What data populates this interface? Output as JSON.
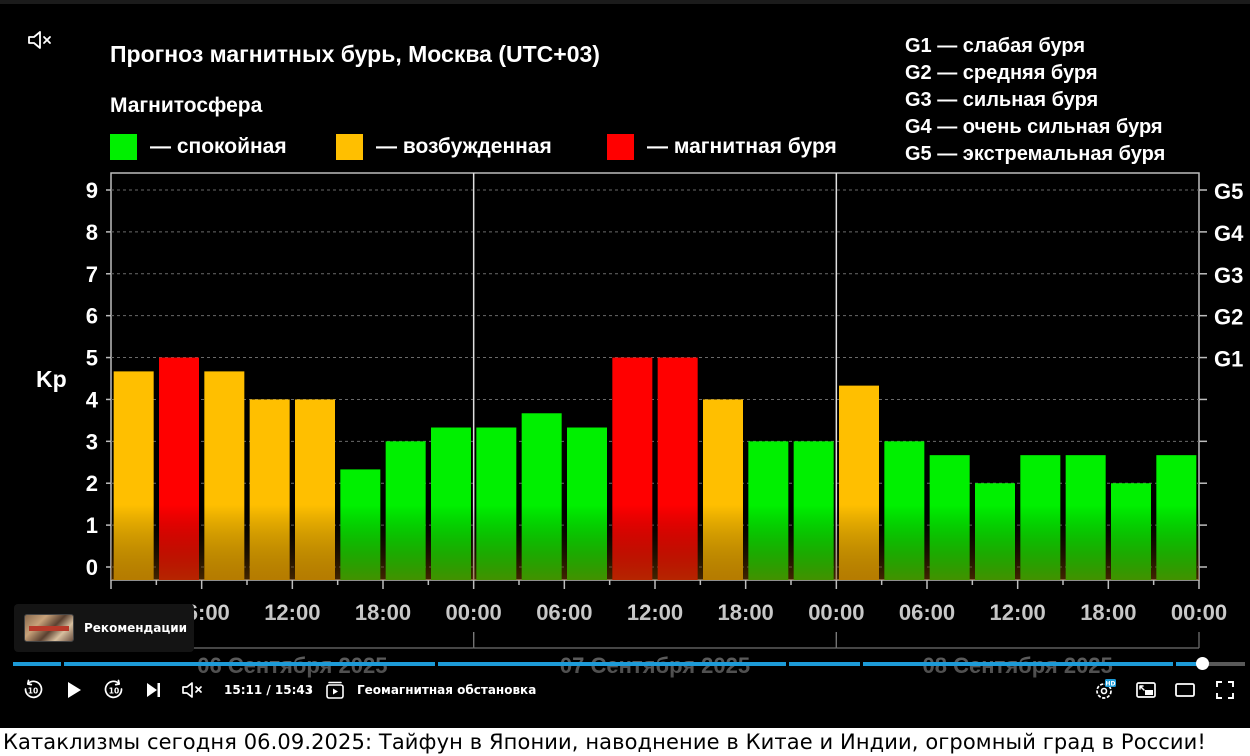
{
  "player": {
    "mute_icon": "muted-speaker-icon",
    "recommendations_label": "Рекомендации",
    "time_current": "15:11",
    "time_total": "15:43",
    "timecode": "15:11 / 15:43",
    "separator": "•",
    "chapter_title": "Геомагнитная обстановка",
    "progress_fraction": 0.965,
    "accent_color": "#1d9bd8",
    "controls": {
      "rewind_icon": "rewind-10-icon",
      "play_icon": "play-icon",
      "forward_icon": "forward-10-icon",
      "next_icon": "next-icon",
      "volume_icon": "muted-speaker-icon",
      "chapters_icon": "chapters-icon",
      "quality_icon": "settings-hd-icon",
      "pip_icon": "picture-in-picture-icon",
      "theater_icon": "theater-mode-icon",
      "fullscreen_icon": "fullscreen-icon"
    }
  },
  "caption": {
    "text": "Катаклизмы сегодня 06.09.2025: Тайфун в Японии, наводнение в Китае и Индии, огромный град в России!"
  },
  "chart_data": {
    "type": "bar",
    "title": "Прогноз магнитных бурь, Москва (UTC+03)",
    "legend_title": "Магнитосфера",
    "legend": [
      {
        "label": "— спокойная",
        "color": "#00f000"
      },
      {
        "label": "— возбужденная",
        "color": "#ffbf00"
      },
      {
        "label": "— магнитная буря",
        "color": "#ff0000"
      }
    ],
    "g_scale_legend": [
      "G1 — слабая буря",
      "G2 — средняя буря",
      "G3 — сильная буря",
      "G4 — очень сильная буря",
      "G5 — экстремальная буря"
    ],
    "ylabel": "Kp",
    "ylim": [
      0,
      9
    ],
    "yticks": [
      "0",
      "1",
      "2",
      "3",
      "4",
      "5",
      "6",
      "7",
      "8",
      "9"
    ],
    "right_ticks": [
      {
        "label": "G1",
        "value": 5
      },
      {
        "label": "G2",
        "value": 6
      },
      {
        "label": "G3",
        "value": 7
      },
      {
        "label": "G4",
        "value": 8
      },
      {
        "label": "G5",
        "value": 9
      }
    ],
    "xticks": [
      "00:00",
      "06:00",
      "12:00",
      "18:00",
      "00:00",
      "06:00",
      "12:00",
      "18:00",
      "00:00",
      "06:00",
      "12:00",
      "18:00",
      "00:00"
    ],
    "day_labels": [
      "06 Сентября 2025",
      "07 Сентября 2025",
      "08 Сентября 2025"
    ],
    "grid": true,
    "colors": {
      "quiet": "#00f000",
      "active": "#ffbf00",
      "storm": "#ff0000"
    },
    "values": [
      4.67,
      5.0,
      4.67,
      4.0,
      4.0,
      2.33,
      3.0,
      3.33,
      3.33,
      3.67,
      3.33,
      5.0,
      5.0,
      4.0,
      3.0,
      3.0,
      4.33,
      3.0,
      2.67,
      2.0,
      2.67,
      2.67,
      2.0,
      2.67
    ],
    "states": [
      "active",
      "storm",
      "active",
      "active",
      "active",
      "quiet",
      "quiet",
      "quiet",
      "quiet",
      "quiet",
      "quiet",
      "storm",
      "storm",
      "active",
      "quiet",
      "quiet",
      "active",
      "quiet",
      "quiet",
      "quiet",
      "quiet",
      "quiet",
      "quiet",
      "quiet"
    ]
  }
}
